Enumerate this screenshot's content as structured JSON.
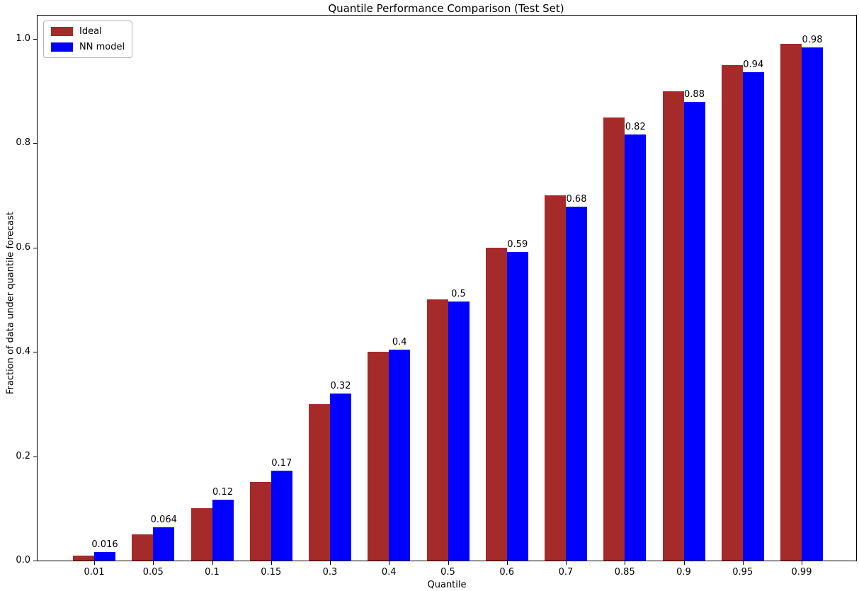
{
  "title": "Quantile Performance Comparison (Test Set)",
  "chart_data": {
    "type": "bar",
    "title": "Quantile Performance Comparison (Test Set)",
    "xlabel": "Quantile",
    "ylabel": "Fraction of data under quantile forecast",
    "categories": [
      "0.01",
      "0.05",
      "0.1",
      "0.15",
      "0.3",
      "0.4",
      "0.5",
      "0.6",
      "0.7",
      "0.85",
      "0.9",
      "0.95",
      "0.99"
    ],
    "series": [
      {
        "name": "Ideal",
        "color": "#a52a2a",
        "values": [
          0.01,
          0.05,
          0.1,
          0.15,
          0.3,
          0.4,
          0.5,
          0.6,
          0.7,
          0.85,
          0.9,
          0.95,
          0.99
        ]
      },
      {
        "name": "NN model",
        "color": "#0000ff",
        "values": [
          0.016,
          0.064,
          0.117,
          0.172,
          0.32,
          0.405,
          0.497,
          0.592,
          0.678,
          0.817,
          0.879,
          0.936,
          0.984
        ],
        "labels": [
          "0.016",
          "0.064",
          "0.12",
          "0.17",
          "0.32",
          "0.4",
          "0.5",
          "0.59",
          "0.68",
          "0.82",
          "0.88",
          "0.94",
          "0.98"
        ]
      }
    ],
    "y_ticks": [
      "0.0",
      "0.2",
      "0.4",
      "0.6",
      "0.8",
      "1.0"
    ],
    "ylim": [
      0,
      1.045
    ],
    "grid": false,
    "legend_position": "upper left",
    "background": "#ffffff",
    "text_color": "#000000"
  }
}
